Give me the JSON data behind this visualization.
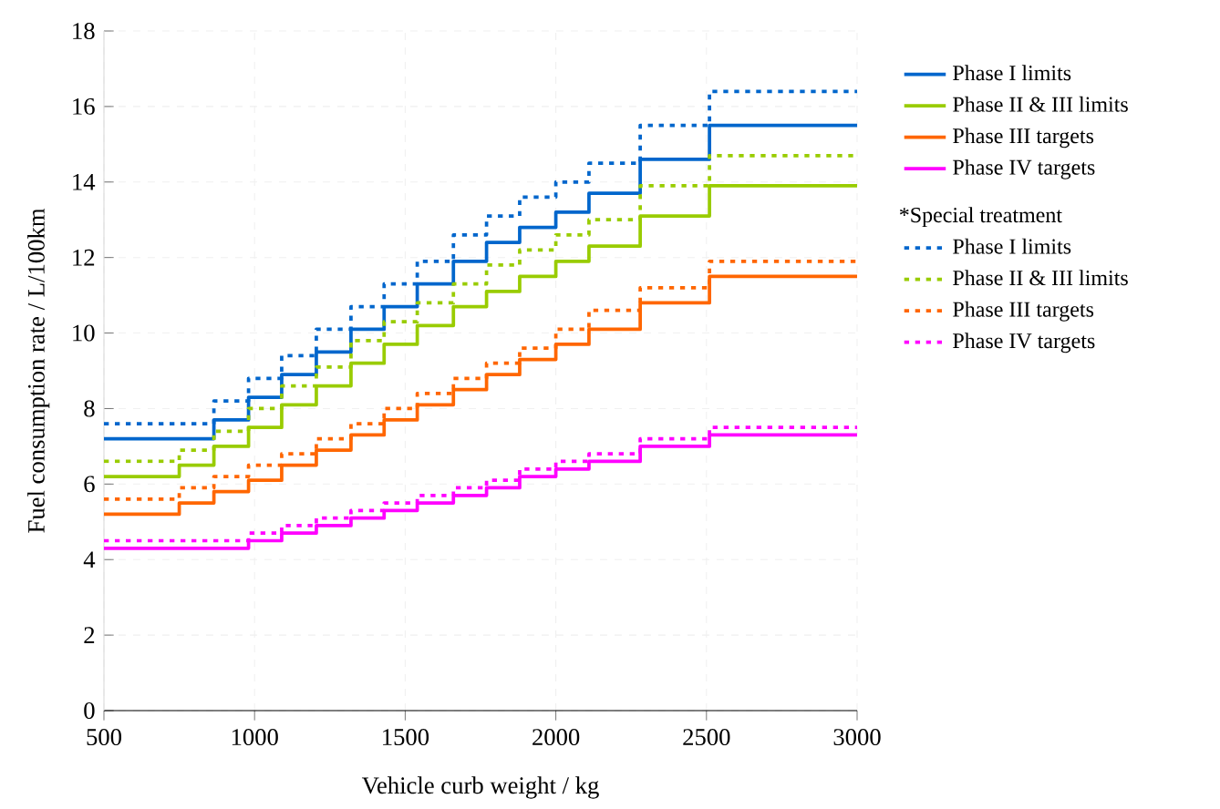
{
  "chart_data": {
    "type": "step",
    "xlabel": "Vehicle curb weight / kg",
    "ylabel": "Fuel consumption rate / L/100km",
    "x": [
      500,
      750,
      865,
      980,
      1090,
      1205,
      1320,
      1430,
      1540,
      1660,
      1770,
      1880,
      2000,
      2110,
      2280,
      2510,
      3000
    ],
    "xlim": [
      500,
      3000
    ],
    "xticks": [
      500,
      1000,
      1500,
      2000,
      2500,
      3000
    ],
    "ylim": [
      0,
      18
    ],
    "yticks": [
      0,
      2,
      4,
      6,
      8,
      10,
      12,
      14,
      16,
      18
    ],
    "grid": true,
    "legend": "right",
    "annotations": [
      "*Special treatment"
    ],
    "series": [
      {
        "name": "Phase I limits",
        "color": "#0066cc",
        "line_style": "solid",
        "values": [
          7.2,
          7.2,
          7.7,
          8.3,
          8.9,
          9.5,
          10.1,
          10.7,
          11.3,
          11.9,
          12.4,
          12.8,
          13.2,
          13.7,
          14.6,
          15.5,
          15.5
        ]
      },
      {
        "name": "Phase II & III limits",
        "color": "#99cc00",
        "line_style": "solid",
        "values": [
          6.2,
          6.5,
          7.0,
          7.5,
          8.1,
          8.6,
          9.2,
          9.7,
          10.2,
          10.7,
          11.1,
          11.5,
          11.9,
          12.3,
          13.1,
          13.9,
          13.9
        ]
      },
      {
        "name": "Phase III targets",
        "color": "#ff6600",
        "line_style": "solid",
        "values": [
          5.2,
          5.5,
          5.8,
          6.1,
          6.5,
          6.9,
          7.3,
          7.7,
          8.1,
          8.5,
          8.9,
          9.3,
          9.7,
          10.1,
          10.8,
          11.5,
          11.5
        ]
      },
      {
        "name": "Phase IV targets",
        "color": "#ff00ff",
        "line_style": "solid",
        "values": [
          4.3,
          4.3,
          4.3,
          4.5,
          4.7,
          4.9,
          5.1,
          5.3,
          5.5,
          5.7,
          5.9,
          6.2,
          6.4,
          6.6,
          7.0,
          7.3,
          7.3
        ]
      },
      {
        "name": "Phase I limits",
        "color": "#0066cc",
        "line_style": "dotted",
        "values": [
          7.6,
          7.6,
          8.2,
          8.8,
          9.4,
          10.1,
          10.7,
          11.3,
          11.9,
          12.6,
          13.1,
          13.6,
          14.0,
          14.5,
          15.5,
          16.4,
          16.4
        ]
      },
      {
        "name": "Phase II & III limits",
        "color": "#99cc00",
        "line_style": "dotted",
        "values": [
          6.6,
          6.9,
          7.4,
          8.0,
          8.6,
          9.1,
          9.8,
          10.3,
          10.8,
          11.3,
          11.8,
          12.2,
          12.6,
          13.0,
          13.9,
          14.7,
          14.7
        ]
      },
      {
        "name": "Phase III targets",
        "color": "#ff6600",
        "line_style": "dotted",
        "values": [
          5.6,
          5.9,
          6.2,
          6.5,
          6.8,
          7.2,
          7.6,
          8.0,
          8.4,
          8.8,
          9.2,
          9.6,
          10.1,
          10.6,
          11.2,
          11.9,
          11.9
        ]
      },
      {
        "name": "Phase IV targets",
        "color": "#ff00ff",
        "line_style": "dotted",
        "values": [
          4.5,
          4.5,
          4.5,
          4.7,
          4.9,
          5.1,
          5.3,
          5.5,
          5.7,
          5.9,
          6.1,
          6.4,
          6.6,
          6.8,
          7.2,
          7.5,
          7.5
        ]
      }
    ]
  }
}
